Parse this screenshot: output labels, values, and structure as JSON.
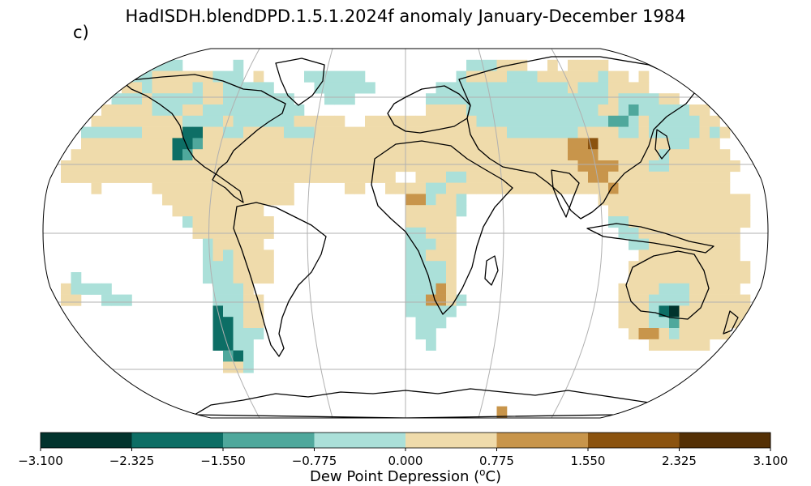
{
  "title": "HadISDH.blendDPD.1.5.1.2024f anomaly January-December 1984",
  "panel_label": "c)",
  "colorbar": {
    "label_prefix": "Dew Point Depression (",
    "label_sup": "o",
    "label_suffix": "C)",
    "ticks": [
      "−3.100",
      "−2.325",
      "−1.550",
      "−0.775",
      "0.000",
      "0.775",
      "1.550",
      "2.325",
      "3.100"
    ],
    "bins": [
      {
        "min": -3.1,
        "max": -2.325,
        "color": "#01332d"
      },
      {
        "min": -2.325,
        "max": -1.55,
        "color": "#0d6e65"
      },
      {
        "min": -1.55,
        "max": -0.775,
        "color": "#4fa89c"
      },
      {
        "min": -0.775,
        "max": 0.0,
        "color": "#abe0d9"
      },
      {
        "min": 0.0,
        "max": 0.775,
        "color": "#efdbab"
      },
      {
        "min": 0.775,
        "max": 1.55,
        "color": "#c8954b"
      },
      {
        "min": 1.55,
        "max": 2.325,
        "color": "#8b530f"
      },
      {
        "min": 2.325,
        "max": 3.1,
        "color": "#543005"
      }
    ]
  },
  "map": {
    "projection": "Robinson",
    "gridlines": true,
    "coastlines": true
  }
}
